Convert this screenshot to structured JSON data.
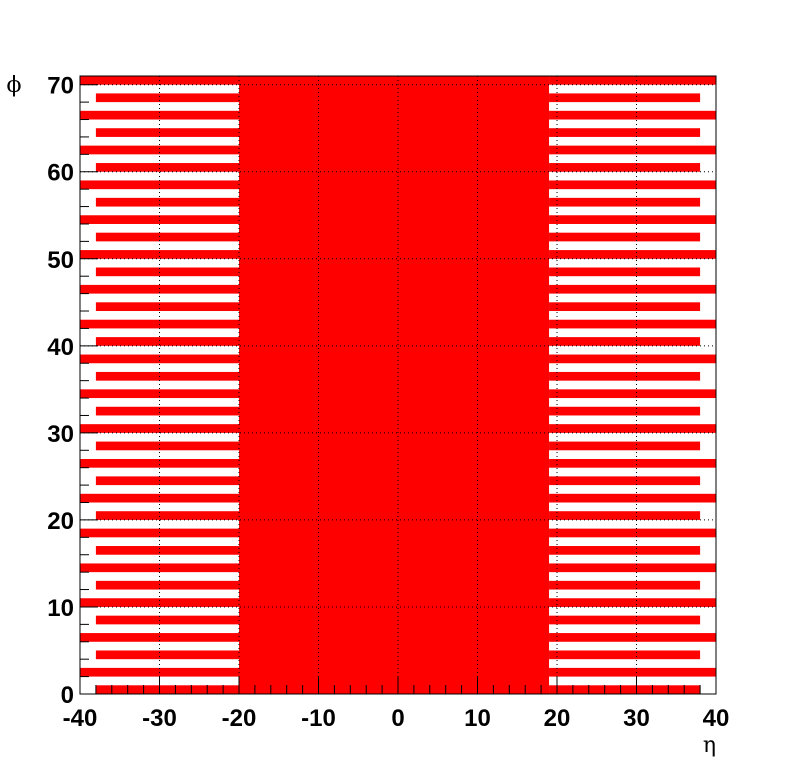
{
  "chart_data": {
    "type": "heatmap",
    "title": "",
    "xlabel": "η",
    "ylabel": "ϕ",
    "xlim": [
      -40,
      40
    ],
    "ylim": [
      0,
      71
    ],
    "x_ticks": [
      -40,
      -30,
      -20,
      -10,
      0,
      10,
      20,
      30,
      40
    ],
    "y_ticks": [
      0,
      10,
      20,
      30,
      40,
      50,
      60,
      70
    ],
    "grid": true,
    "fill_color": "#ff0000",
    "central_block": {
      "eta_min": -20,
      "eta_max": 19,
      "phi_min": 0,
      "phi_max": 71
    },
    "outer_rows": [
      {
        "phi_min": 0,
        "phi_max": 1,
        "eta_ranges": [
          [
            -38,
            -20
          ],
          [
            19,
            38
          ]
        ]
      },
      {
        "phi_min": 2,
        "phi_max": 3,
        "eta_ranges": [
          [
            -40,
            -20
          ],
          [
            19,
            40
          ]
        ]
      },
      {
        "phi_min": 4,
        "phi_max": 5,
        "eta_ranges": [
          [
            -38,
            -20
          ],
          [
            19,
            38
          ]
        ]
      },
      {
        "phi_min": 6,
        "phi_max": 7,
        "eta_ranges": [
          [
            -40,
            -20
          ],
          [
            19,
            40
          ]
        ]
      },
      {
        "phi_min": 8,
        "phi_max": 9,
        "eta_ranges": [
          [
            -38,
            -20
          ],
          [
            19,
            38
          ]
        ]
      },
      {
        "phi_min": 10,
        "phi_max": 11,
        "eta_ranges": [
          [
            -40,
            -20
          ],
          [
            19,
            40
          ]
        ]
      },
      {
        "phi_min": 12,
        "phi_max": 13,
        "eta_ranges": [
          [
            -38,
            -20
          ],
          [
            19,
            38
          ]
        ]
      },
      {
        "phi_min": 14,
        "phi_max": 15,
        "eta_ranges": [
          [
            -40,
            -20
          ],
          [
            19,
            40
          ]
        ]
      },
      {
        "phi_min": 16,
        "phi_max": 17,
        "eta_ranges": [
          [
            -38,
            -20
          ],
          [
            19,
            38
          ]
        ]
      },
      {
        "phi_min": 18,
        "phi_max": 19,
        "eta_ranges": [
          [
            -40,
            -20
          ],
          [
            19,
            40
          ]
        ]
      },
      {
        "phi_min": 20,
        "phi_max": 21,
        "eta_ranges": [
          [
            -38,
            -20
          ],
          [
            19,
            38
          ]
        ]
      },
      {
        "phi_min": 22,
        "phi_max": 23,
        "eta_ranges": [
          [
            -40,
            -20
          ],
          [
            19,
            40
          ]
        ]
      },
      {
        "phi_min": 24,
        "phi_max": 25,
        "eta_ranges": [
          [
            -38,
            -20
          ],
          [
            19,
            38
          ]
        ]
      },
      {
        "phi_min": 26,
        "phi_max": 27,
        "eta_ranges": [
          [
            -40,
            -20
          ],
          [
            19,
            40
          ]
        ]
      },
      {
        "phi_min": 28,
        "phi_max": 29,
        "eta_ranges": [
          [
            -38,
            -20
          ],
          [
            19,
            38
          ]
        ]
      },
      {
        "phi_min": 30,
        "phi_max": 31,
        "eta_ranges": [
          [
            -40,
            -20
          ],
          [
            19,
            40
          ]
        ]
      },
      {
        "phi_min": 32,
        "phi_max": 33,
        "eta_ranges": [
          [
            -38,
            -20
          ],
          [
            19,
            38
          ]
        ]
      },
      {
        "phi_min": 34,
        "phi_max": 35,
        "eta_ranges": [
          [
            -40,
            -20
          ],
          [
            19,
            40
          ]
        ]
      },
      {
        "phi_min": 36,
        "phi_max": 37,
        "eta_ranges": [
          [
            -38,
            -20
          ],
          [
            19,
            38
          ]
        ]
      },
      {
        "phi_min": 38,
        "phi_max": 39,
        "eta_ranges": [
          [
            -40,
            -20
          ],
          [
            19,
            40
          ]
        ]
      },
      {
        "phi_min": 40,
        "phi_max": 41,
        "eta_ranges": [
          [
            -38,
            -20
          ],
          [
            19,
            38
          ]
        ]
      },
      {
        "phi_min": 42,
        "phi_max": 43,
        "eta_ranges": [
          [
            -40,
            -20
          ],
          [
            19,
            40
          ]
        ]
      },
      {
        "phi_min": 44,
        "phi_max": 45,
        "eta_ranges": [
          [
            -38,
            -20
          ],
          [
            19,
            38
          ]
        ]
      },
      {
        "phi_min": 46,
        "phi_max": 47,
        "eta_ranges": [
          [
            -40,
            -20
          ],
          [
            19,
            40
          ]
        ]
      },
      {
        "phi_min": 48,
        "phi_max": 49,
        "eta_ranges": [
          [
            -38,
            -20
          ],
          [
            19,
            38
          ]
        ]
      },
      {
        "phi_min": 50,
        "phi_max": 51,
        "eta_ranges": [
          [
            -40,
            -20
          ],
          [
            19,
            40
          ]
        ]
      },
      {
        "phi_min": 52,
        "phi_max": 53,
        "eta_ranges": [
          [
            -38,
            -20
          ],
          [
            19,
            38
          ]
        ]
      },
      {
        "phi_min": 54,
        "phi_max": 55,
        "eta_ranges": [
          [
            -40,
            -20
          ],
          [
            19,
            40
          ]
        ]
      },
      {
        "phi_min": 56,
        "phi_max": 57,
        "eta_ranges": [
          [
            -38,
            -20
          ],
          [
            19,
            38
          ]
        ]
      },
      {
        "phi_min": 58,
        "phi_max": 59,
        "eta_ranges": [
          [
            -40,
            -20
          ],
          [
            19,
            40
          ]
        ]
      },
      {
        "phi_min": 60,
        "phi_max": 61,
        "eta_ranges": [
          [
            -38,
            -20
          ],
          [
            19,
            38
          ]
        ]
      },
      {
        "phi_min": 62,
        "phi_max": 63,
        "eta_ranges": [
          [
            -40,
            -20
          ],
          [
            19,
            40
          ]
        ]
      },
      {
        "phi_min": 64,
        "phi_max": 65,
        "eta_ranges": [
          [
            -38,
            -20
          ],
          [
            19,
            38
          ]
        ]
      },
      {
        "phi_min": 66,
        "phi_max": 67,
        "eta_ranges": [
          [
            -40,
            -20
          ],
          [
            19,
            40
          ]
        ]
      },
      {
        "phi_min": 68,
        "phi_max": 69,
        "eta_ranges": [
          [
            -38,
            -20
          ],
          [
            19,
            38
          ]
        ]
      },
      {
        "phi_min": 70,
        "phi_max": 71,
        "eta_ranges": [
          [
            -40,
            -20
          ],
          [
            19,
            40
          ]
        ]
      }
    ]
  }
}
